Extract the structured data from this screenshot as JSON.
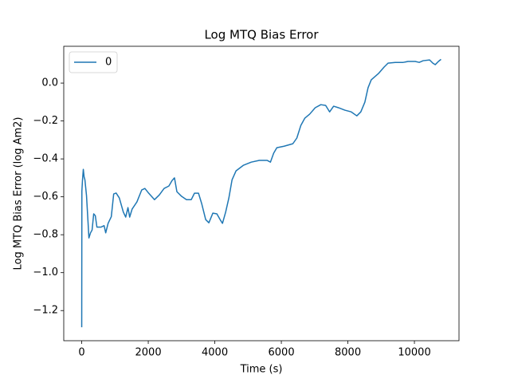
{
  "chart_data": {
    "type": "line",
    "title": "Log MTQ Bias Error",
    "x_label": "Time (s)",
    "y_label": "Log MTQ Bias Error (log Am2)",
    "x": [
      0,
      5,
      24,
      48,
      72,
      96,
      144,
      192,
      216,
      265,
      312,
      360,
      409,
      457,
      577,
      673,
      721,
      793,
      889,
      961,
      1034,
      1130,
      1250,
      1322,
      1390,
      1442,
      1514,
      1659,
      1803,
      1899,
      1995,
      2188,
      2332,
      2476,
      2620,
      2716,
      2788,
      2861,
      3005,
      3149,
      3293,
      3389,
      3510,
      3606,
      3726,
      3822,
      3942,
      4062,
      4159,
      4231,
      4327,
      4423,
      4519,
      4639,
      4856,
      5096,
      5337,
      5577,
      5673,
      5769,
      5865,
      6082,
      6346,
      6466,
      6587,
      6707,
      6851,
      7019,
      7187,
      7332,
      7452,
      7572,
      7716,
      7909,
      8101,
      8269,
      8389,
      8510,
      8606,
      8702,
      8918,
      9087,
      9207,
      9423,
      9663,
      9808,
      10024,
      10144,
      10264,
      10457,
      10553,
      10625,
      10721,
      10800
    ],
    "series": [
      {
        "name": "0",
        "color": "#1f77b4",
        "values": [
          -1.288,
          -0.57,
          -0.51,
          -0.455,
          -0.495,
          -0.51,
          -0.594,
          -0.74,
          -0.817,
          -0.79,
          -0.775,
          -0.69,
          -0.7,
          -0.76,
          -0.76,
          -0.752,
          -0.79,
          -0.74,
          -0.705,
          -0.585,
          -0.58,
          -0.606,
          -0.68,
          -0.707,
          -0.657,
          -0.707,
          -0.665,
          -0.627,
          -0.564,
          -0.556,
          -0.577,
          -0.615,
          -0.59,
          -0.556,
          -0.543,
          -0.514,
          -0.5,
          -0.573,
          -0.598,
          -0.615,
          -0.615,
          -0.581,
          -0.581,
          -0.636,
          -0.72,
          -0.737,
          -0.686,
          -0.69,
          -0.72,
          -0.74,
          -0.68,
          -0.606,
          -0.51,
          -0.463,
          -0.434,
          -0.417,
          -0.408,
          -0.408,
          -0.417,
          -0.37,
          -0.341,
          -0.333,
          -0.32,
          -0.29,
          -0.223,
          -0.185,
          -0.164,
          -0.13,
          -0.114,
          -0.118,
          -0.152,
          -0.122,
          -0.13,
          -0.143,
          -0.152,
          -0.173,
          -0.152,
          -0.101,
          -0.025,
          0.017,
          0.05,
          0.084,
          0.105,
          0.109,
          0.109,
          0.114,
          0.114,
          0.109,
          0.118,
          0.122,
          0.105,
          0.097,
          0.114,
          0.125
        ]
      }
    ],
    "xlim": [
      -540,
      11340
    ],
    "xticks": [
      0,
      2000,
      4000,
      6000,
      8000,
      10000
    ],
    "ylim": [
      -1.359,
      0.194
    ],
    "yticks": [
      {
        "value": -1.2,
        "label": "−1.2"
      },
      {
        "value": -1.0,
        "label": "−1.0"
      },
      {
        "value": -0.8,
        "label": "−0.8"
      },
      {
        "value": -0.6,
        "label": "−0.6"
      },
      {
        "value": -0.4,
        "label": "−0.4"
      },
      {
        "value": -0.2,
        "label": "−0.2"
      },
      {
        "value": 0.0,
        "label": "0.0"
      }
    ],
    "legend": "upper left",
    "grid": false
  }
}
